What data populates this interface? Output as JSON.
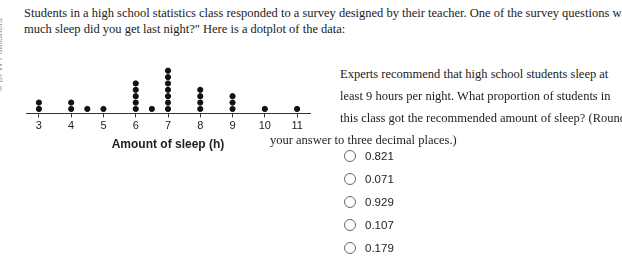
{
  "watermark": "© BFW Publishers",
  "question": [
    "Students in a high school statistics class responded to a survey designed by their teacher. One of the survey questions was \"How",
    "much sleep did you get last night?\" Here is a dotplot of the data:"
  ],
  "prompt": [
    "Experts recommend that high school students sleep at",
    "least 9 hours per night. What proportion of students in",
    "this class got the recommended amount of sleep? (Round",
    "your answer to three decimal places.)"
  ],
  "options": [
    "0.821",
    "0.071",
    "0.929",
    "0.107",
    "0.179"
  ],
  "chart_data": {
    "type": "dot",
    "x_label": "Amount of sleep (h)",
    "x": [
      3,
      4,
      4.5,
      5,
      6,
      6.5,
      7,
      8,
      9,
      10,
      11
    ],
    "values": [
      2,
      2,
      1,
      1,
      5,
      1,
      7,
      4,
      3,
      1,
      1
    ],
    "color": "#111111",
    "marker": "circle",
    "xlim": [
      2.6,
      11.4
    ],
    "xticks": [
      3,
      4,
      5,
      6,
      7,
      8,
      9,
      10,
      11
    ],
    "grid": false,
    "tick_labels": "x"
  }
}
